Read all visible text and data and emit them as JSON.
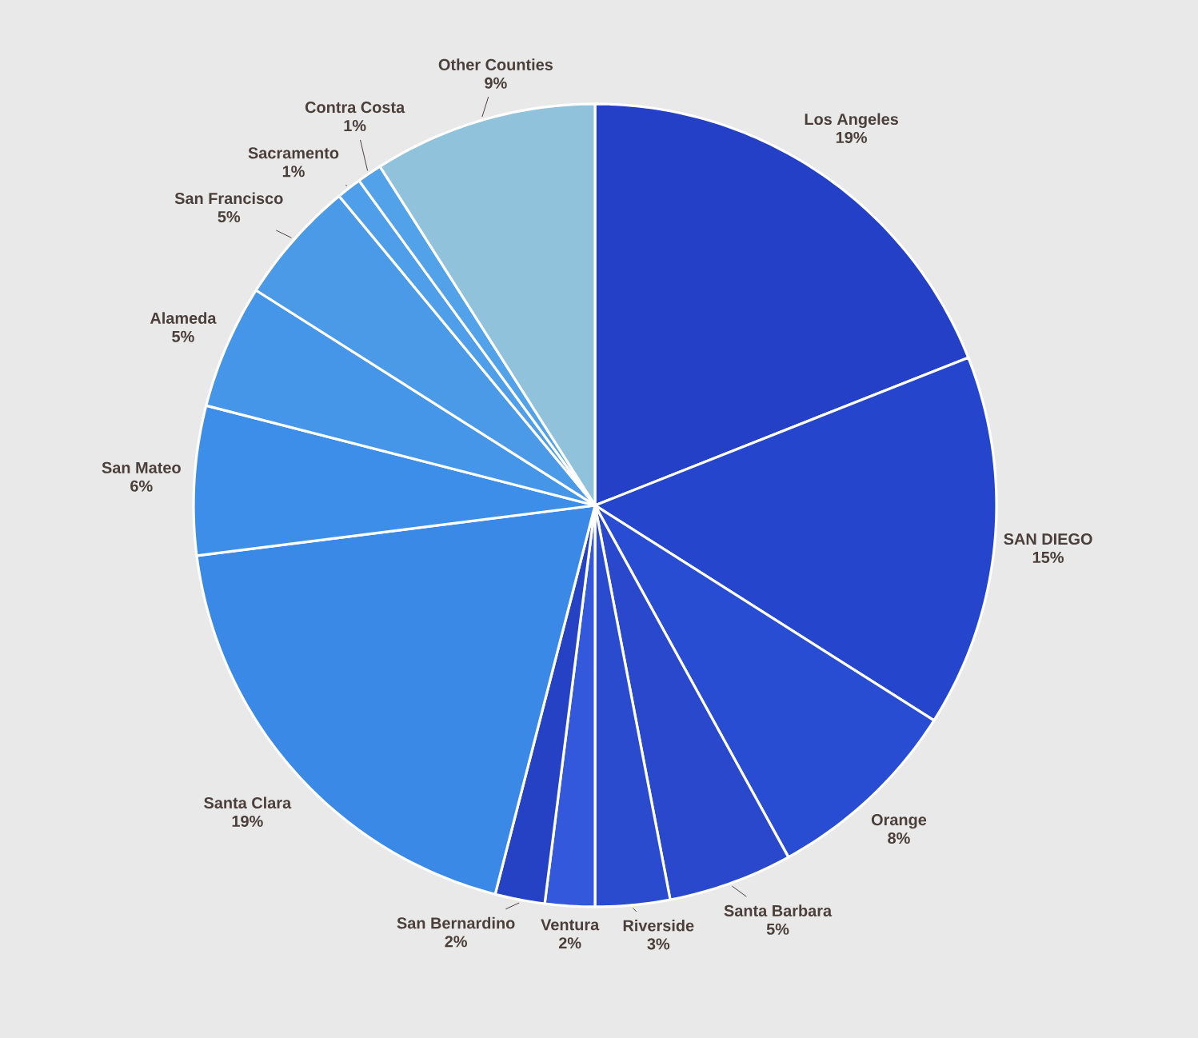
{
  "chart_data": {
    "type": "pie",
    "categories": [
      "Los Angeles",
      "SAN DIEGO",
      "Orange",
      "Santa Barbara",
      "Riverside",
      "Ventura",
      "San Bernardino",
      "Santa Clara",
      "San Mateo",
      "Alameda",
      "San Francisco",
      "Sacramento",
      "Contra Costa",
      "Other Counties"
    ],
    "values": [
      19,
      15,
      8,
      5,
      3,
      2,
      2,
      19,
      6,
      5,
      5,
      1,
      1,
      9
    ],
    "value_labels": [
      "19%",
      "15%",
      "8%",
      "5%",
      "3%",
      "2%",
      "2%",
      "19%",
      "6%",
      "5%",
      "5%",
      "1%",
      "1%",
      "9%"
    ],
    "colors": [
      "#2340c6",
      "#2546cc",
      "#284dd3",
      "#2a48cc",
      "#2b4bcf",
      "#3358dc",
      "#2541c4",
      "#3a89e6",
      "#3d8ee8",
      "#4596e8",
      "#4b9ae8",
      "#4e9ee9",
      "#52a2ea",
      "#90c2dc"
    ]
  }
}
